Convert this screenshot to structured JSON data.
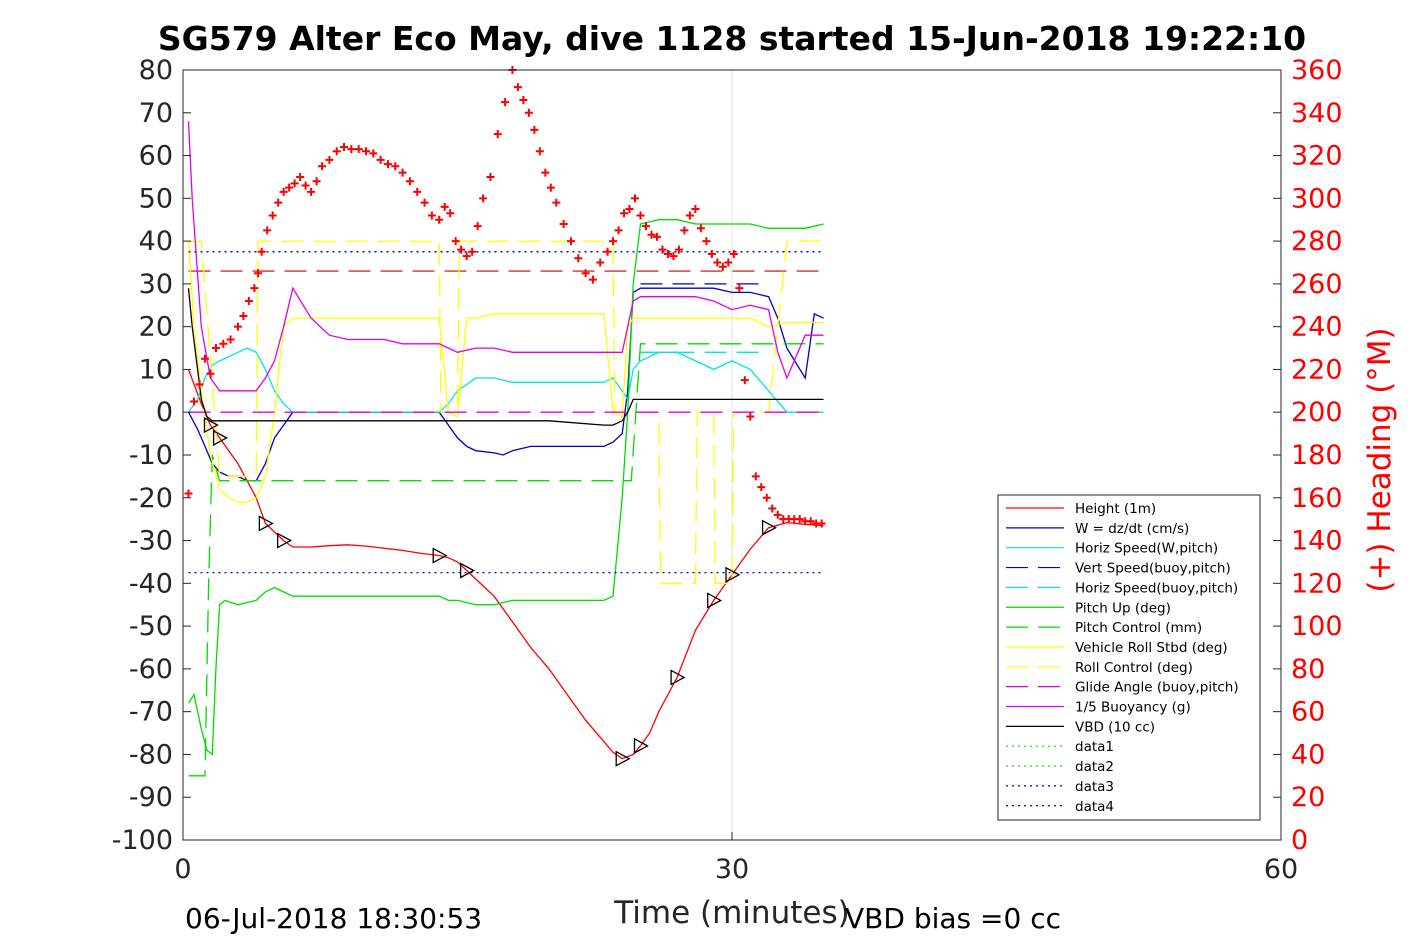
{
  "chart_data": {
    "type": "line",
    "title": "SG579 Alter Eco May, dive 1128 started 15-Jun-2018 19:22:10",
    "xlabel": "Time (minutes)",
    "ylabel": "",
    "y2label": "(+) Heading (°M)",
    "xlim": [
      0,
      60
    ],
    "ylim": [
      -100,
      80
    ],
    "y2lim": [
      0,
      360
    ],
    "x_ticks": [
      "0",
      "30",
      "60"
    ],
    "y_ticks": [
      "80",
      "70",
      "60",
      "50",
      "40",
      "30",
      "20",
      "10",
      "0",
      "-10",
      "-20",
      "-30",
      "-40",
      "-50",
      "-60",
      "-70",
      "-80",
      "-90",
      "-100"
    ],
    "y2_ticks": [
      "360",
      "340",
      "320",
      "300",
      "280",
      "260",
      "240",
      "220",
      "200",
      "180",
      "160",
      "140",
      "120",
      "100",
      "80",
      "60",
      "40",
      "20",
      "0"
    ],
    "grid": "x only at 30",
    "legend_position": "right",
    "footer_left": "06-Jul-2018 18:30:53",
    "footer_right": "VBD bias =0 cc",
    "colors": {
      "height": "#ff0000",
      "w": "#0000cd",
      "horiz": "#00e5e5",
      "pitch": "#00dd00",
      "roll": "#ffff00",
      "glide": "#e600e6",
      "vbd": "#000000",
      "heading": "#ff0000",
      "data4": "#0000aa"
    },
    "series": [
      {
        "name": "Height (1m)",
        "style": "solid",
        "color": "#ff0000",
        "x": [
          0.3,
          1,
          1.5,
          2,
          3,
          4,
          4.5,
          5,
          5.5,
          6,
          7,
          8,
          9,
          10,
          11,
          12,
          13,
          14,
          14.5,
          15,
          15.5,
          16,
          17,
          18,
          19,
          20,
          21,
          22,
          23,
          23.5,
          24,
          24.3,
          24.6,
          25,
          25.5,
          26,
          27,
          28,
          29,
          30,
          31,
          32,
          33,
          34,
          35
        ],
        "y": [
          10,
          2,
          -3,
          -6,
          -12,
          -20,
          -26,
          -28,
          -30,
          -31.5,
          -31.5,
          -31.2,
          -31,
          -31.3,
          -31.8,
          -32.3,
          -33,
          -33.5,
          -34,
          -35,
          -37,
          -39,
          -43,
          -49,
          -55,
          -60,
          -66,
          -72,
          -77,
          -79.5,
          -81,
          -80.5,
          -80,
          -78,
          -75,
          -70,
          -62,
          -51,
          -44,
          -38,
          -32,
          -27,
          -25.8,
          -26.2,
          -26.5
        ]
      },
      {
        "name": "W = dz/dt (cm/s)",
        "style": "solid",
        "color": "#0000cd",
        "x": [
          0.3,
          0.8,
          1.2,
          1.6,
          2,
          2.5,
          3,
          3.5,
          4,
          4.5,
          5,
          5.5,
          6,
          7,
          8,
          9,
          10,
          11,
          12,
          13,
          14,
          14.5,
          15,
          15.5,
          16,
          17,
          17.5,
          18,
          19,
          20,
          21,
          22,
          23,
          23.5,
          24,
          24.3,
          24.6,
          25,
          26,
          27,
          28,
          29,
          30,
          31,
          32,
          32.5,
          33,
          34,
          34.5,
          35
        ],
        "y": [
          0,
          -4,
          -8,
          -12,
          -14,
          -15,
          -15,
          -16,
          -16,
          -12,
          -6,
          -3,
          0,
          0,
          0,
          0,
          0,
          0,
          0,
          0,
          0,
          -3,
          -6,
          -8,
          -9,
          -9.5,
          -10,
          -9,
          -8,
          -8,
          -8,
          -8,
          -8,
          -7,
          -5,
          5,
          28,
          29,
          29,
          29,
          29,
          29,
          28,
          28,
          27,
          22,
          15,
          8,
          23,
          22
        ]
      },
      {
        "name": "Horiz Speed(W,pitch)",
        "style": "solid",
        "color": "#00e5e5",
        "x": [
          0.3,
          0.8,
          1.2,
          1.6,
          2,
          2.5,
          3,
          3.5,
          4,
          4.5,
          5,
          5.5,
          6,
          7,
          8,
          9,
          10,
          11,
          12,
          13,
          14,
          14.5,
          15,
          16,
          17,
          18,
          19,
          20,
          21,
          22,
          23,
          23.5,
          24,
          24.3,
          24.6,
          25,
          26,
          27,
          28,
          29,
          30,
          31,
          32,
          33,
          34,
          35
        ],
        "y": [
          0,
          3,
          8,
          11,
          12,
          13,
          14,
          15,
          14,
          10,
          5,
          2,
          0,
          0,
          0,
          0,
          0,
          0,
          0,
          0,
          0,
          2,
          5,
          8,
          8,
          7,
          7,
          7,
          7,
          7,
          7,
          8,
          5,
          3,
          10,
          12,
          14,
          14,
          12,
          10,
          12,
          10,
          5,
          0,
          0,
          0
        ]
      },
      {
        "name": "Vert Speed(buoy,pitch)",
        "style": "dashed",
        "color": "#0000cd",
        "x": [
          25,
          32
        ],
        "y": [
          30,
          30
        ]
      },
      {
        "name": "Horiz Speed(buoy,pitch)",
        "style": "dashed",
        "color": "#00e5e5",
        "x": [
          25,
          32
        ],
        "y": [
          14,
          14
        ]
      },
      {
        "name": "Pitch Up (deg)",
        "style": "solid",
        "color": "#00dd00",
        "x": [
          0.3,
          0.6,
          1,
          1.3,
          1.6,
          1.8,
          2,
          2.3,
          3,
          4,
          4.5,
          5,
          5.5,
          6,
          7,
          8,
          9,
          10,
          11,
          12,
          13,
          14,
          14.5,
          15,
          16,
          17,
          18,
          19,
          20,
          21,
          22,
          23,
          23.5,
          24,
          24.3,
          24.6,
          25,
          26,
          27,
          28,
          29,
          30,
          31,
          32,
          33,
          34,
          35
        ],
        "y": [
          -68,
          -66,
          -74,
          -79,
          -80,
          -60,
          -45,
          -44,
          -45,
          -44,
          -42,
          -41,
          -42,
          -43,
          -43,
          -43,
          -43,
          -43,
          -43,
          -43,
          -43,
          -43,
          -44,
          -44,
          -45,
          -45,
          -44,
          -44,
          -44,
          -44,
          -44,
          -44,
          -43,
          -20,
          0,
          30,
          44,
          45,
          45,
          44,
          44,
          44,
          44,
          43,
          43,
          43,
          44
        ]
      },
      {
        "name": "Pitch Control (mm)",
        "style": "dashed",
        "color": "#00dd00",
        "x": [
          0.3,
          1.2,
          1.4,
          1.6,
          2,
          3,
          5,
          10,
          15,
          20,
          23.5,
          24,
          24.5,
          25,
          30,
          35
        ],
        "y": [
          -85,
          -85,
          -40,
          -10,
          -16,
          -16,
          -16,
          -16,
          -16,
          -16,
          -16,
          -16,
          -16,
          16,
          16,
          16
        ]
      },
      {
        "name": "Vehicle Roll Stbd (deg)",
        "style": "solid",
        "color": "#ffff00",
        "x": [
          0.3,
          0.6,
          1,
          1.5,
          2,
          2.5,
          3,
          3.5,
          4,
          4.5,
          5,
          5.5,
          6,
          7,
          8,
          9,
          10,
          11,
          12,
          13,
          14,
          14.5,
          15,
          15.5,
          16,
          17,
          18,
          19,
          20,
          21,
          22,
          23,
          23.5,
          24,
          24.3,
          24.6,
          25,
          26,
          27,
          28,
          29,
          30,
          31,
          32,
          33,
          34,
          35
        ],
        "y": [
          40,
          20,
          5,
          -10,
          -18,
          -20,
          -21,
          -21,
          -20,
          -15,
          0,
          20,
          22,
          22,
          22,
          22,
          22,
          22,
          22,
          22,
          22,
          0,
          -1,
          22,
          22,
          23,
          23,
          23,
          23,
          23,
          23,
          23,
          0,
          -1,
          20,
          22,
          22,
          22,
          22,
          22,
          22,
          22,
          22,
          20,
          21,
          21,
          21
        ]
      },
      {
        "name": "Roll Control (deg)",
        "style": "dashed",
        "color": "#ffff00",
        "x": [
          0.3,
          1,
          2,
          4,
          4.1,
          5,
          6,
          8,
          10,
          12,
          14,
          14.1,
          15,
          15.1,
          17,
          20,
          23,
          23.5,
          23.6,
          25,
          26,
          26.1,
          28,
          28.1,
          29,
          29.1,
          30,
          30.1,
          32,
          33,
          35
        ],
        "y": [
          40,
          40,
          -15,
          -15,
          40,
          40,
          40,
          40,
          40,
          40,
          40,
          0,
          0,
          40,
          40,
          40,
          40,
          40,
          0,
          0,
          0,
          -40,
          -40,
          0,
          0,
          -40,
          -40,
          0,
          0,
          40,
          40
        ]
      },
      {
        "name": "Glide Angle (buoy,pitch)",
        "style": "dashed",
        "color": "#e600e6",
        "x": [
          0.3,
          5,
          10,
          15,
          20,
          23.5,
          24,
          35
        ],
        "y": [
          0,
          0,
          0,
          0,
          0,
          0,
          0,
          0
        ]
      },
      {
        "name": "1/5 Buoyancy (g)",
        "style": "solid",
        "color": "#e600e6",
        "x": [
          0.3,
          0.5,
          1,
          1.5,
          2,
          3,
          4,
          4.5,
          5,
          5.5,
          6,
          7,
          8,
          9,
          10,
          11,
          12,
          13,
          14,
          14.5,
          15,
          16,
          17,
          18,
          19,
          20,
          21,
          22,
          23,
          23.5,
          24,
          24.3,
          24.6,
          25,
          26,
          27,
          28,
          29,
          30,
          31,
          32,
          32.5,
          33,
          34,
          35
        ],
        "y": [
          68,
          50,
          20,
          8,
          5,
          5,
          5,
          8,
          12,
          20,
          29,
          22,
          18,
          17,
          17,
          17,
          16,
          16,
          16,
          15,
          14,
          15,
          15,
          14,
          14,
          14,
          14,
          14,
          14,
          14,
          14,
          20,
          26,
          27,
          27,
          27,
          27,
          26,
          24,
          25,
          24,
          14,
          8,
          18,
          18
        ]
      },
      {
        "name": "VBD (10 cc)",
        "style": "solid",
        "color": "#000000",
        "x": [
          0.3,
          0.5,
          0.8,
          1,
          1.3,
          1.6,
          2,
          3,
          5,
          10,
          15,
          20,
          23,
          23.5,
          24,
          24.3,
          24.6,
          25,
          26,
          30,
          35
        ],
        "y": [
          29,
          20,
          10,
          3,
          -1,
          -2,
          -2,
          -2,
          -2,
          -2,
          -2,
          -2,
          -3,
          -3,
          -2,
          0,
          3,
          3,
          3,
          3,
          3
        ]
      },
      {
        "name": "data1",
        "style": "dotted",
        "color": "#00dd00",
        "x": [],
        "y": []
      },
      {
        "name": "data2",
        "style": "dotted",
        "color": "#00dd00",
        "x": [],
        "y": []
      },
      {
        "name": "data3",
        "style": "dotted",
        "color": "#0000aa",
        "x": [],
        "y": []
      },
      {
        "name": "data4",
        "style": "dotted",
        "color": "#0000aa",
        "x": [
          0.3,
          35
        ],
        "y": [
          37.5,
          37.5
        ],
        "x2": [
          0.3,
          35
        ],
        "y2": [
          -37.5,
          -37.5
        ]
      }
    ],
    "reference_lines": [
      {
        "style": "dashed",
        "color": "#cc0000",
        "y": 33,
        "x": [
          0.3,
          35
        ]
      }
    ],
    "heading": {
      "axis": "right",
      "marker": "+",
      "x": [
        0.3,
        0.6,
        0.9,
        1.2,
        1.5,
        1.8,
        2.2,
        2.6,
        3,
        3.3,
        3.6,
        3.9,
        4.1,
        4.3,
        4.6,
        4.9,
        5.2,
        5.5,
        5.8,
        6.1,
        6.4,
        6.7,
        7,
        7.3,
        7.6,
        8,
        8.4,
        8.8,
        9.2,
        9.6,
        10,
        10.4,
        10.8,
        11.2,
        11.6,
        12,
        12.4,
        12.8,
        13.2,
        13.6,
        14,
        14.3,
        14.6,
        14.9,
        15.2,
        15.5,
        15.8,
        16.1,
        16.4,
        16.8,
        17.2,
        17.6,
        18,
        18.3,
        18.6,
        18.9,
        19.2,
        19.5,
        19.8,
        20.1,
        20.4,
        20.8,
        21.2,
        21.6,
        22,
        22.4,
        22.8,
        23.2,
        23.5,
        23.8,
        24.1,
        24.4,
        24.7,
        25,
        25.3,
        25.6,
        25.9,
        26.2,
        26.5,
        26.8,
        27.1,
        27.4,
        27.7,
        28,
        28.3,
        28.6,
        28.9,
        29.2,
        29.5,
        29.8,
        30.1,
        30.4,
        30.7,
        31,
        31.3,
        31.6,
        31.9,
        32.2,
        32.5,
        32.8,
        33.1,
        33.4,
        33.7,
        34,
        34.3,
        34.6,
        34.9
      ],
      "y": [
        162,
        205,
        213,
        225,
        218,
        230,
        232,
        234,
        240,
        245,
        252,
        258,
        265,
        275,
        285,
        292,
        298,
        303,
        305,
        307,
        310,
        306,
        303,
        308,
        315,
        318,
        322,
        324,
        323,
        323,
        322,
        321,
        318,
        316,
        315,
        312,
        308,
        303,
        298,
        292,
        290,
        296,
        293,
        280,
        276,
        273,
        275,
        287,
        300,
        310,
        330,
        345,
        360,
        352,
        346,
        340,
        332,
        322,
        312,
        305,
        298,
        288,
        280,
        272,
        265,
        262,
        270,
        275,
        280,
        285,
        293,
        295,
        300,
        292,
        287,
        283,
        282,
        276,
        274,
        273,
        276,
        285,
        292,
        295,
        286,
        280,
        274,
        270,
        268,
        270,
        274,
        258,
        215,
        198,
        170,
        165,
        160,
        155,
        152,
        150,
        150,
        150,
        150,
        149,
        149,
        148,
        148
      ]
    }
  }
}
